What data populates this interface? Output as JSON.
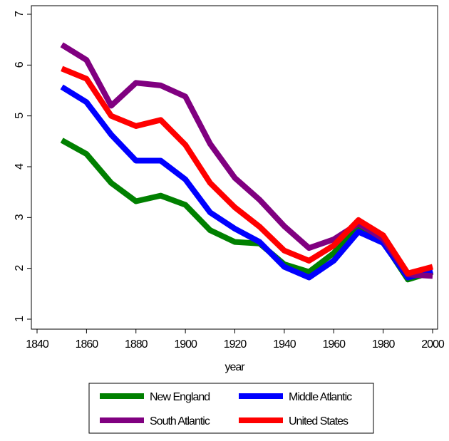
{
  "chart_data": {
    "type": "line",
    "xlabel": "year",
    "x": [
      1850,
      1860,
      1870,
      1880,
      1890,
      1900,
      1910,
      1920,
      1930,
      1940,
      1950,
      1960,
      1970,
      1980,
      1990,
      2000
    ],
    "series": [
      {
        "name": "New England",
        "color": "#008000",
        "values": [
          4.52,
          4.25,
          3.68,
          3.32,
          3.43,
          3.25,
          2.75,
          2.52,
          2.49,
          2.08,
          1.93,
          2.3,
          2.85,
          2.52,
          1.78,
          1.93
        ]
      },
      {
        "name": "Middle Atlantic",
        "color": "#0000ff",
        "values": [
          5.57,
          5.27,
          4.63,
          4.12,
          4.12,
          3.75,
          3.1,
          2.78,
          2.52,
          2.03,
          1.82,
          2.15,
          2.72,
          2.5,
          1.82,
          1.95
        ]
      },
      {
        "name": "South Atlantic",
        "color": "#800080",
        "values": [
          6.4,
          6.1,
          5.2,
          5.65,
          5.6,
          5.38,
          4.45,
          3.78,
          3.35,
          2.83,
          2.4,
          2.57,
          2.88,
          2.58,
          1.88,
          1.85
        ]
      },
      {
        "name": "United States",
        "color": "#ff0000",
        "values": [
          5.93,
          5.73,
          5.0,
          4.8,
          4.92,
          4.43,
          3.68,
          3.2,
          2.82,
          2.35,
          2.15,
          2.45,
          2.95,
          2.65,
          1.9,
          2.03
        ]
      }
    ],
    "xlim": [
      1840,
      2000
    ],
    "xticks": [
      1840,
      1860,
      1880,
      1900,
      1920,
      1940,
      1960,
      1980,
      2000
    ],
    "ylim": [
      1,
      7
    ],
    "yticks": [
      1,
      2,
      3,
      4,
      5,
      6,
      7
    ]
  }
}
